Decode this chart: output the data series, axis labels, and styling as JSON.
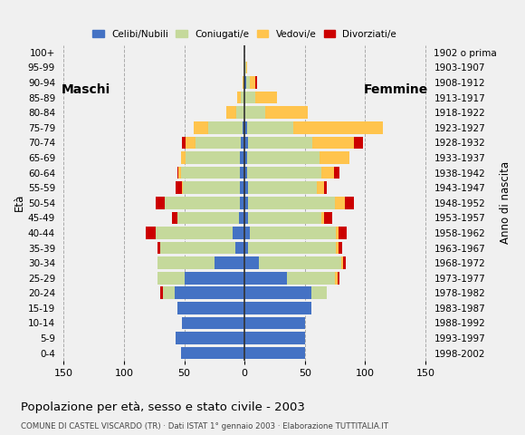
{
  "age_groups": [
    "0-4",
    "5-9",
    "10-14",
    "15-19",
    "20-24",
    "25-29",
    "30-34",
    "35-39",
    "40-44",
    "45-49",
    "50-54",
    "55-59",
    "60-64",
    "65-69",
    "70-74",
    "75-79",
    "80-84",
    "85-89",
    "90-94",
    "95-99",
    "100+"
  ],
  "birth_years": [
    "1998-2002",
    "1993-1997",
    "1988-1992",
    "1983-1987",
    "1978-1982",
    "1973-1977",
    "1968-1972",
    "1963-1967",
    "1958-1962",
    "1953-1957",
    "1948-1952",
    "1943-1947",
    "1938-1942",
    "1933-1937",
    "1928-1932",
    "1923-1927",
    "1918-1922",
    "1913-1917",
    "1908-1912",
    "1903-1907",
    "1902 o prima"
  ],
  "male": {
    "celibi": [
      53,
      57,
      52,
      56,
      58,
      50,
      25,
      8,
      10,
      5,
      4,
      4,
      4,
      4,
      3,
      2,
      0,
      0,
      0,
      0,
      0
    ],
    "coniugati": [
      0,
      0,
      0,
      0,
      10,
      22,
      47,
      62,
      64,
      51,
      62,
      47,
      49,
      45,
      38,
      28,
      7,
      3,
      1,
      0,
      0
    ],
    "vedovi": [
      0,
      0,
      0,
      0,
      0,
      0,
      0,
      0,
      0,
      0,
      0,
      1,
      2,
      4,
      8,
      12,
      8,
      3,
      1,
      0,
      0
    ],
    "divorziati": [
      0,
      0,
      0,
      0,
      2,
      0,
      0,
      2,
      8,
      4,
      8,
      5,
      1,
      0,
      3,
      0,
      0,
      0,
      0,
      0,
      0
    ]
  },
  "female": {
    "nubili": [
      50,
      50,
      50,
      55,
      55,
      35,
      12,
      3,
      4,
      3,
      3,
      3,
      2,
      2,
      3,
      2,
      0,
      0,
      1,
      0,
      0
    ],
    "coniugate": [
      0,
      0,
      0,
      0,
      13,
      40,
      68,
      73,
      72,
      61,
      72,
      57,
      62,
      60,
      53,
      38,
      17,
      9,
      3,
      1,
      0
    ],
    "vedove": [
      0,
      0,
      0,
      0,
      0,
      2,
      2,
      2,
      2,
      2,
      8,
      6,
      10,
      25,
      35,
      75,
      35,
      18,
      5,
      1,
      0
    ],
    "divorziate": [
      0,
      0,
      0,
      0,
      0,
      2,
      2,
      3,
      7,
      7,
      8,
      2,
      5,
      0,
      7,
      0,
      0,
      0,
      1,
      0,
      0
    ]
  },
  "colors": {
    "celibi": "#4472c4",
    "coniugati": "#c5d99b",
    "vedovi": "#ffc44d",
    "divorziati": "#cc0000"
  },
  "xlim": 155,
  "title": "Popolazione per età, sesso e stato civile - 2003",
  "subtitle": "COMUNE DI CASTEL VISCARDO (TR) · Dati ISTAT 1° gennaio 2003 · Elaborazione TUTTITALIA.IT",
  "ylabel": "Età",
  "ylabel_right": "Anno di nascita",
  "label_maschi": "Maschi",
  "label_femmine": "Femmine",
  "legend_labels": [
    "Celibi/Nubili",
    "Coniugati/e",
    "Vedovi/e",
    "Divorziati/e"
  ],
  "bg_color": "#f0f0f0"
}
